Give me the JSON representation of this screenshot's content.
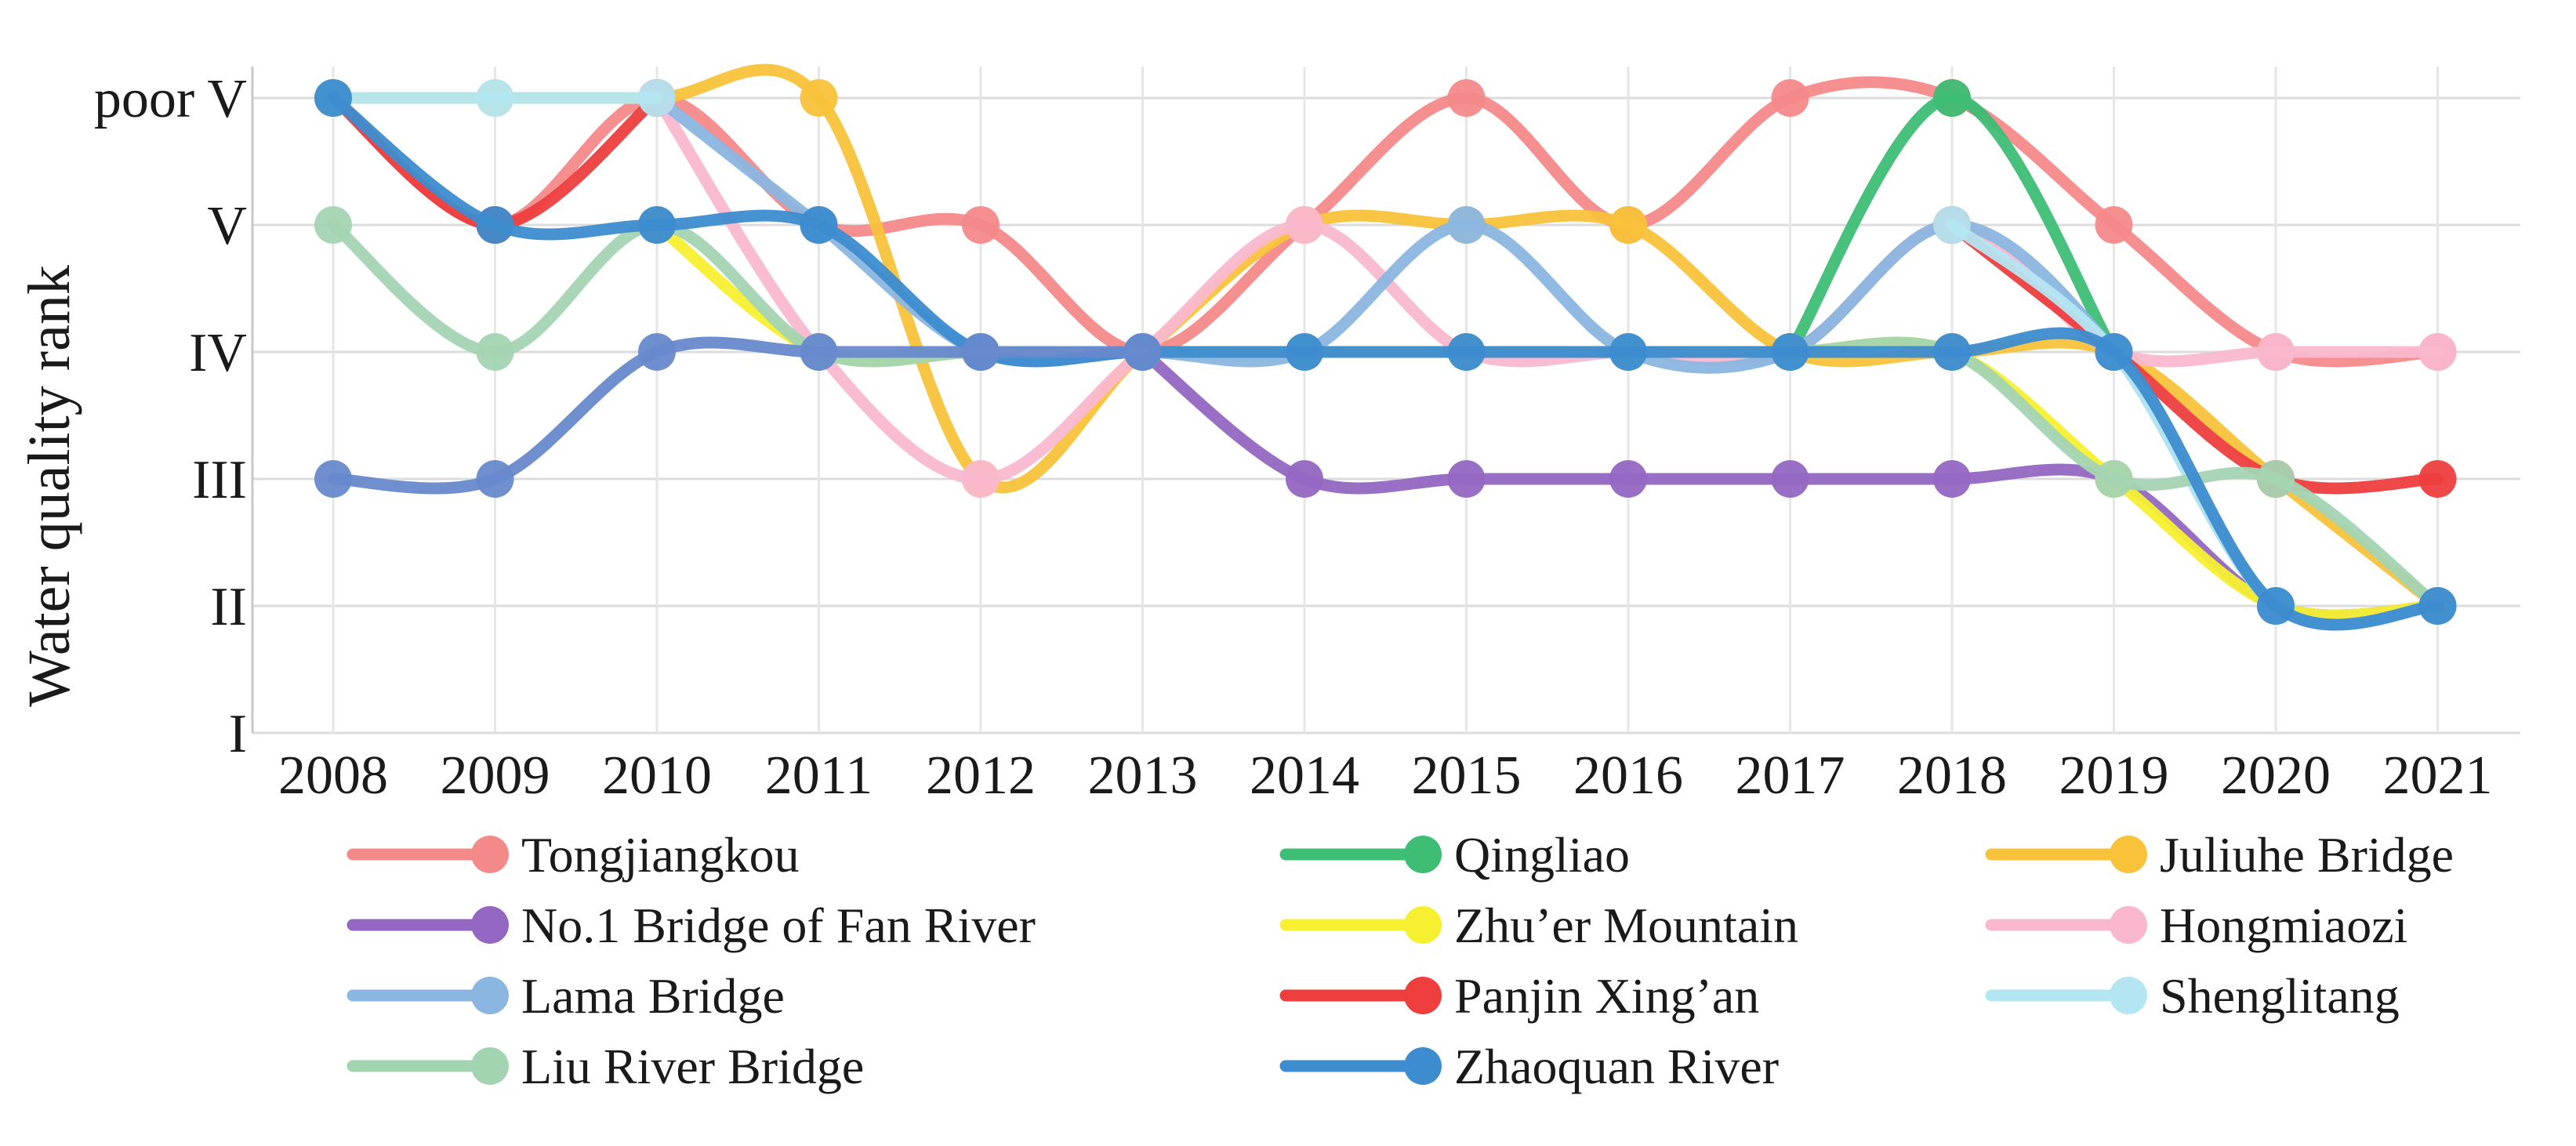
{
  "chart_data": {
    "type": "line",
    "title": "",
    "xlabel": "",
    "ylabel": "Water quality rank",
    "x": [
      "2008",
      "2009",
      "2010",
      "2011",
      "2012",
      "2013",
      "2014",
      "2015",
      "2016",
      "2017",
      "2018",
      "2019",
      "2020",
      "2021"
    ],
    "y_tick_labels": [
      "I",
      "II",
      "III",
      "IV",
      "V",
      "poor V"
    ],
    "y_scale_note": "",
    "ylim": [
      1,
      6
    ],
    "grid": "horizontal and vertical",
    "legend_position": "bottom",
    "series": [
      {
        "name": "Tongjiangkou",
        "color": "#F4898A",
        "values": [
          6,
          5,
          6,
          5,
          5,
          4,
          5,
          6,
          5,
          6,
          6,
          5,
          4,
          4
        ]
      },
      {
        "name": "Qingliao",
        "color": "#3DBE74",
        "values": [
          null,
          null,
          null,
          null,
          null,
          null,
          null,
          null,
          null,
          4,
          6,
          4,
          null,
          null
        ]
      },
      {
        "name": "Juliuhe Bridge",
        "color": "#F8C23A",
        "values": [
          6,
          6,
          6,
          6,
          3,
          4,
          5,
          5,
          5,
          4,
          4,
          4,
          3,
          2
        ]
      },
      {
        "name": "No.1 Bridge of Fan River",
        "color": "#9467C3",
        "values": [
          null,
          null,
          null,
          null,
          null,
          4,
          3,
          3,
          3,
          3,
          3,
          3,
          2,
          2
        ]
      },
      {
        "name": "Zhu’er Mountain",
        "color": "#F7F031",
        "values": [
          null,
          null,
          5,
          4,
          4,
          4,
          4,
          4,
          4,
          4,
          4,
          3,
          2,
          2
        ]
      },
      {
        "name": "Hongmiaozi",
        "color": "#F9B8CD",
        "values": [
          null,
          null,
          6,
          4,
          3,
          4,
          5,
          4,
          4,
          4,
          5,
          4,
          4,
          4
        ]
      },
      {
        "name": "Lama Bridge",
        "color": "#8BB6E2",
        "values": [
          null,
          null,
          6,
          5,
          4,
          4,
          4,
          5,
          4,
          4,
          5,
          4,
          2,
          2
        ]
      },
      {
        "name": "Panjin Xing’an",
        "color": "#EE3E3E",
        "values": [
          6,
          5,
          6,
          null,
          null,
          null,
          null,
          null,
          null,
          null,
          5,
          4,
          3,
          3
        ]
      },
      {
        "name": "Shenglitang",
        "color": "#B3E6F2",
        "values": [
          6,
          6,
          6,
          null,
          null,
          null,
          null,
          null,
          null,
          null,
          5,
          4,
          2,
          2
        ]
      },
      {
        "name": "Liu River Bridge",
        "color": "#A3D4B2",
        "values": [
          5,
          4,
          5,
          4,
          4,
          4,
          4,
          4,
          4,
          4,
          4,
          3,
          3,
          2
        ]
      },
      {
        "name": "Zhaoquan River",
        "color": "#3D8CCF",
        "values": [
          6,
          5,
          5,
          5,
          4,
          4,
          4,
          4,
          4,
          4,
          4,
          4,
          2,
          2
        ]
      },
      {
        "name": "",
        "color": "#6789CC",
        "values": [
          3,
          3,
          4,
          4,
          4,
          4,
          null,
          null,
          null,
          null,
          null,
          null,
          null,
          null
        ]
      }
    ]
  }
}
